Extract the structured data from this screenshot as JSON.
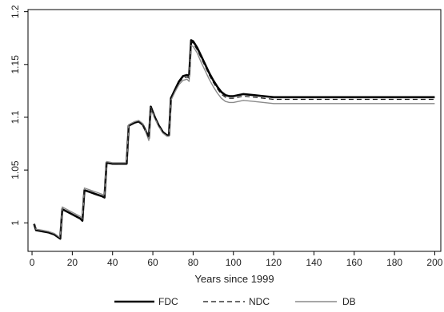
{
  "chart_data": {
    "type": "line",
    "xlabel": "Years since 1999",
    "ylabel": "",
    "xlim": [
      -2,
      203
    ],
    "ylim": [
      0.973,
      1.202
    ],
    "xticks": [
      0,
      20,
      40,
      60,
      80,
      100,
      120,
      140,
      160,
      180,
      200
    ],
    "yticks": [
      1,
      1.05,
      1.1,
      1.15,
      1.2
    ],
    "ytick_labels": [
      "1",
      "1.05",
      "1.1",
      "1.15",
      "1.2"
    ],
    "grid": false,
    "legend": {
      "position": "bottom"
    },
    "series": [
      {
        "name": "FDC",
        "color": "#000000",
        "style": "solid-thick",
        "points": [
          [
            1,
            0.999
          ],
          [
            2,
            0.993
          ],
          [
            5,
            0.992
          ],
          [
            8,
            0.991
          ],
          [
            11,
            0.989
          ],
          [
            14,
            0.985
          ],
          [
            15,
            1.013
          ],
          [
            18,
            1.01
          ],
          [
            21,
            1.007
          ],
          [
            24,
            1.004
          ],
          [
            25,
            1.002
          ],
          [
            26,
            1.031
          ],
          [
            29,
            1.029
          ],
          [
            32,
            1.027
          ],
          [
            35,
            1.025
          ],
          [
            36,
            1.024
          ],
          [
            37,
            1.057
          ],
          [
            40,
            1.056
          ],
          [
            43,
            1.056
          ],
          [
            46,
            1.056
          ],
          [
            47,
            1.056
          ],
          [
            48,
            1.092
          ],
          [
            51,
            1.095
          ],
          [
            53,
            1.096
          ],
          [
            55,
            1.093
          ],
          [
            57,
            1.085
          ],
          [
            58,
            1.08
          ],
          [
            59,
            1.11
          ],
          [
            61,
            1.1
          ],
          [
            63,
            1.092
          ],
          [
            65,
            1.086
          ],
          [
            67,
            1.083
          ],
          [
            68,
            1.083
          ],
          [
            69,
            1.118
          ],
          [
            71,
            1.126
          ],
          [
            73,
            1.134
          ],
          [
            75,
            1.139
          ],
          [
            77,
            1.14
          ],
          [
            78,
            1.139
          ],
          [
            79,
            1.173
          ],
          [
            80,
            1.172
          ],
          [
            82,
            1.166
          ],
          [
            84,
            1.158
          ],
          [
            86,
            1.15
          ],
          [
            88,
            1.142
          ],
          [
            90,
            1.135
          ],
          [
            92,
            1.129
          ],
          [
            94,
            1.124
          ],
          [
            96,
            1.121
          ],
          [
            98,
            1.12
          ],
          [
            100,
            1.12
          ],
          [
            105,
            1.122
          ],
          [
            110,
            1.121
          ],
          [
            115,
            1.12
          ],
          [
            120,
            1.119
          ],
          [
            140,
            1.119
          ],
          [
            160,
            1.119
          ],
          [
            180,
            1.119
          ],
          [
            200,
            1.119
          ]
        ]
      },
      {
        "name": "NDC",
        "color": "#111111",
        "style": "dashed",
        "points": [
          [
            1,
            0.999
          ],
          [
            2,
            0.993
          ],
          [
            5,
            0.992
          ],
          [
            8,
            0.991
          ],
          [
            11,
            0.989
          ],
          [
            14,
            0.985
          ],
          [
            15,
            1.013
          ],
          [
            18,
            1.01
          ],
          [
            21,
            1.007
          ],
          [
            24,
            1.004
          ],
          [
            25,
            1.002
          ],
          [
            26,
            1.031
          ],
          [
            29,
            1.029
          ],
          [
            32,
            1.027
          ],
          [
            35,
            1.025
          ],
          [
            36,
            1.024
          ],
          [
            37,
            1.057
          ],
          [
            40,
            1.056
          ],
          [
            43,
            1.056
          ],
          [
            46,
            1.056
          ],
          [
            47,
            1.056
          ],
          [
            48,
            1.092
          ],
          [
            51,
            1.095
          ],
          [
            53,
            1.096
          ],
          [
            55,
            1.093
          ],
          [
            57,
            1.085
          ],
          [
            58,
            1.08
          ],
          [
            59,
            1.11
          ],
          [
            61,
            1.1
          ],
          [
            63,
            1.092
          ],
          [
            65,
            1.086
          ],
          [
            67,
            1.083
          ],
          [
            68,
            1.083
          ],
          [
            69,
            1.118
          ],
          [
            71,
            1.126
          ],
          [
            73,
            1.133
          ],
          [
            75,
            1.137
          ],
          [
            77,
            1.138
          ],
          [
            78,
            1.137
          ],
          [
            79,
            1.172
          ],
          [
            80,
            1.17
          ],
          [
            82,
            1.164
          ],
          [
            84,
            1.156
          ],
          [
            86,
            1.148
          ],
          [
            88,
            1.14
          ],
          [
            90,
            1.133
          ],
          [
            92,
            1.127
          ],
          [
            94,
            1.122
          ],
          [
            96,
            1.119
          ],
          [
            98,
            1.118
          ],
          [
            100,
            1.118
          ],
          [
            105,
            1.12
          ],
          [
            110,
            1.119
          ],
          [
            115,
            1.118
          ],
          [
            120,
            1.117
          ],
          [
            140,
            1.117
          ],
          [
            160,
            1.117
          ],
          [
            180,
            1.117
          ],
          [
            200,
            1.117
          ]
        ]
      },
      {
        "name": "DB",
        "color": "#8a8a8a",
        "style": "solid",
        "points": [
          [
            1,
            0.999
          ],
          [
            2,
            0.994
          ],
          [
            5,
            0.993
          ],
          [
            8,
            0.992
          ],
          [
            11,
            0.99
          ],
          [
            14,
            0.986
          ],
          [
            15,
            1.015
          ],
          [
            18,
            1.012
          ],
          [
            21,
            1.009
          ],
          [
            24,
            1.006
          ],
          [
            25,
            1.004
          ],
          [
            26,
            1.033
          ],
          [
            29,
            1.031
          ],
          [
            32,
            1.029
          ],
          [
            35,
            1.027
          ],
          [
            36,
            1.026
          ],
          [
            37,
            1.058
          ],
          [
            40,
            1.057
          ],
          [
            43,
            1.057
          ],
          [
            46,
            1.057
          ],
          [
            47,
            1.057
          ],
          [
            48,
            1.093
          ],
          [
            51,
            1.096
          ],
          [
            53,
            1.097
          ],
          [
            55,
            1.094
          ],
          [
            57,
            1.084
          ],
          [
            58,
            1.078
          ],
          [
            59,
            1.109
          ],
          [
            61,
            1.099
          ],
          [
            63,
            1.091
          ],
          [
            65,
            1.085
          ],
          [
            67,
            1.082
          ],
          [
            68,
            1.082
          ],
          [
            69,
            1.116
          ],
          [
            71,
            1.124
          ],
          [
            73,
            1.131
          ],
          [
            75,
            1.135
          ],
          [
            77,
            1.136
          ],
          [
            78,
            1.134
          ],
          [
            79,
            1.168
          ],
          [
            80,
            1.167
          ],
          [
            82,
            1.161
          ],
          [
            84,
            1.152
          ],
          [
            86,
            1.144
          ],
          [
            88,
            1.136
          ],
          [
            90,
            1.129
          ],
          [
            92,
            1.123
          ],
          [
            94,
            1.118
          ],
          [
            96,
            1.115
          ],
          [
            98,
            1.114
          ],
          [
            100,
            1.114
          ],
          [
            105,
            1.116
          ],
          [
            110,
            1.115
          ],
          [
            115,
            1.114
          ],
          [
            120,
            1.113
          ],
          [
            140,
            1.113
          ],
          [
            160,
            1.113
          ],
          [
            180,
            1.113
          ],
          [
            200,
            1.113
          ]
        ]
      }
    ]
  }
}
